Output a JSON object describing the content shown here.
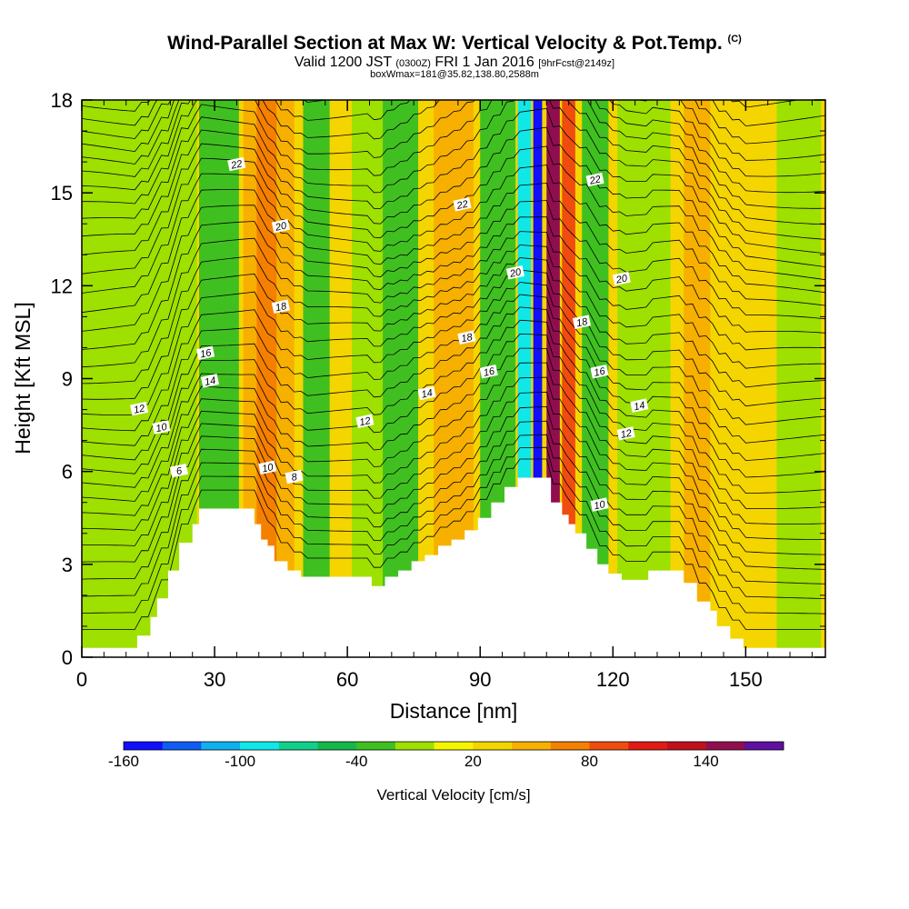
{
  "header": {
    "title": "Wind-Parallel Section at Max W: Vertical Velocity & Pot.Temp.",
    "copyright": "(C)",
    "valid_prefix": "Valid 1200 JST",
    "valid_utc": "(0300Z)",
    "valid_date": "FRI 1 Jan 2016",
    "forecast": "[9hrFcst@2149z]",
    "note": "boxWmax=181@35.82,138.80,2588m"
  },
  "chart_data": {
    "type": "heatmap",
    "xlabel": "Distance [nm]",
    "ylabel": "Height [Kft MSL]",
    "xlim": [
      0,
      168
    ],
    "ylim": [
      0,
      18
    ],
    "x_ticks": [
      0,
      30,
      60,
      90,
      120,
      150
    ],
    "y_ticks": [
      0,
      3,
      6,
      9,
      12,
      15,
      18
    ],
    "terrain": {
      "x": [
        0,
        12.5,
        12.5,
        15.5,
        15.5,
        17,
        17,
        19.5,
        19.5,
        22,
        22,
        25,
        25,
        26.5,
        26.5,
        29,
        29,
        39,
        39,
        40.5,
        40.5,
        42,
        42,
        43.5,
        43.5,
        46.5,
        46.5,
        49.5,
        49.5,
        65.5,
        65.5,
        68.5,
        68.5,
        71.5,
        71.5,
        74.5,
        74.5,
        77.5,
        77.5,
        80.5,
        80.5,
        83.5,
        83.5,
        86.5,
        86.5,
        89.5,
        89.5,
        92.5,
        92.5,
        95.5,
        95.5,
        98.5,
        98.5,
        101.5,
        101.5,
        106,
        106,
        108.5,
        108.5,
        110,
        110,
        111.5,
        111.5,
        114,
        114,
        116.5,
        116.5,
        119,
        119,
        122,
        122,
        125,
        125,
        128,
        128,
        131,
        131,
        136,
        136,
        139,
        139,
        142,
        142,
        143.5,
        143.5,
        146.5,
        146.5,
        149.5,
        149.5,
        168
      ],
      "z": [
        0.3,
        0.3,
        0.7,
        0.7,
        1.3,
        1.3,
        1.9,
        1.9,
        2.8,
        2.8,
        3.7,
        3.7,
        4.3,
        4.3,
        4.8,
        4.8,
        4.8,
        4.8,
        4.3,
        4.3,
        3.8,
        3.8,
        3.6,
        3.6,
        3.1,
        3.1,
        2.8,
        2.8,
        2.6,
        2.6,
        2.3,
        2.3,
        2.6,
        2.6,
        2.8,
        2.8,
        3.1,
        3.1,
        3.3,
        3.3,
        3.6,
        3.6,
        3.8,
        3.8,
        4.1,
        4.1,
        4.5,
        4.5,
        5.0,
        5.0,
        5.5,
        5.5,
        5.8,
        5.8,
        5.8,
        5.8,
        5.0,
        5.0,
        4.6,
        4.6,
        4.3,
        4.3,
        4.0,
        4.0,
        3.5,
        3.5,
        3.0,
        3.0,
        2.7,
        2.7,
        2.5,
        2.5,
        2.5,
        2.5,
        2.8,
        2.8,
        2.8,
        2.8,
        2.4,
        2.4,
        1.8,
        1.8,
        1.5,
        1.5,
        1.0,
        1.0,
        0.6,
        0.6,
        0.3,
        0.3
      ]
    },
    "vertical_velocity_bands": [
      {
        "x_center": 12,
        "width": 28,
        "value": -20
      },
      {
        "x_center": 31,
        "width": 9,
        "value": -40
      },
      {
        "x_center": 38.5,
        "width": 4,
        "value": 40
      },
      {
        "x_center": 42,
        "width": 5,
        "value": 60
      },
      {
        "x_center": 46,
        "width": 4,
        "value": 40
      },
      {
        "x_center": 53,
        "width": 6,
        "value": -40
      },
      {
        "x_center": 66,
        "width": 10,
        "value": -20
      },
      {
        "x_center": 72,
        "width": 8,
        "value": -40
      },
      {
        "x_center": 84,
        "width": 9,
        "value": 40
      },
      {
        "x_center": 94,
        "width": 8,
        "value": -40
      },
      {
        "x_center": 100,
        "width": 3,
        "value": -100
      },
      {
        "x_center": 103,
        "width": 2,
        "value": -160
      },
      {
        "x_center": 106.5,
        "width": 3,
        "value": 140
      },
      {
        "x_center": 110,
        "width": 3,
        "value": 80
      },
      {
        "x_center": 116,
        "width": 6,
        "value": -40
      },
      {
        "x_center": 127,
        "width": 12,
        "value": -20
      },
      {
        "x_center": 139,
        "width": 6,
        "value": 40
      },
      {
        "x_center": 152,
        "width": 8,
        "value": 20
      },
      {
        "x_center": 162,
        "width": 10,
        "value": -20
      }
    ],
    "theta_contours": [
      {
        "level": 6,
        "label": "6",
        "label_at": [
          22,
          6.0
        ]
      },
      {
        "level": 8,
        "label": "8",
        "label_at": [
          48,
          5.8
        ]
      },
      {
        "level": 10,
        "label": "10",
        "label_at": [
          18,
          7.4
        ]
      },
      {
        "level": 10,
        "label": "10",
        "label_at": [
          42,
          6.1
        ]
      },
      {
        "level": 10,
        "label": "10",
        "label_at": [
          117,
          4.9
        ]
      },
      {
        "level": 12,
        "label": "12",
        "label_at": [
          13,
          8.0
        ]
      },
      {
        "level": 12,
        "label": "12",
        "label_at": [
          64,
          7.6
        ]
      },
      {
        "level": 12,
        "label": "12",
        "label_at": [
          123,
          7.2
        ]
      },
      {
        "level": 14,
        "label": "14",
        "label_at": [
          29,
          8.9
        ]
      },
      {
        "level": 14,
        "label": "14",
        "label_at": [
          78,
          8.5
        ]
      },
      {
        "level": 14,
        "label": "14",
        "label_at": [
          126,
          8.1
        ]
      },
      {
        "level": 16,
        "label": "16",
        "label_at": [
          28,
          9.8
        ]
      },
      {
        "level": 16,
        "label": "16",
        "label_at": [
          92,
          9.2
        ]
      },
      {
        "level": 16,
        "label": "16",
        "label_at": [
          117,
          9.2
        ]
      },
      {
        "level": 18,
        "label": "18",
        "label_at": [
          45,
          11.3
        ]
      },
      {
        "level": 18,
        "label": "18",
        "label_at": [
          87,
          10.3
        ]
      },
      {
        "level": 18,
        "label": "18",
        "label_at": [
          113,
          10.8
        ]
      },
      {
        "level": 20,
        "label": "20",
        "label_at": [
          45,
          13.9
        ]
      },
      {
        "level": 20,
        "label": "20",
        "label_at": [
          98,
          12.4
        ]
      },
      {
        "level": 20,
        "label": "20",
        "label_at": [
          122,
          12.2
        ]
      },
      {
        "level": 22,
        "label": "22",
        "label_at": [
          35,
          15.9
        ]
      },
      {
        "level": 22,
        "label": "22",
        "label_at": [
          86,
          14.6
        ]
      },
      {
        "level": 22,
        "label": "22",
        "label_at": [
          116,
          15.4
        ]
      }
    ],
    "colorbar": {
      "title": "Vertical Velocity [cm/s]",
      "tick_labels": [
        "-160",
        "-100",
        "-40",
        "20",
        "80",
        "140"
      ],
      "tick_values": [
        -160,
        -100,
        -40,
        20,
        80,
        140
      ],
      "range": [
        -160,
        180
      ],
      "step": 20,
      "colors": [
        "#1010ff",
        "#0f5cf5",
        "#10b0f0",
        "#10e8e8",
        "#10d08a",
        "#14b84a",
        "#40c020",
        "#9ee000",
        "#f5f500",
        "#f5d500",
        "#f7b000",
        "#f58000",
        "#f04c10",
        "#e01a14",
        "#c0101c",
        "#900e50",
        "#5e10a0"
      ]
    }
  }
}
